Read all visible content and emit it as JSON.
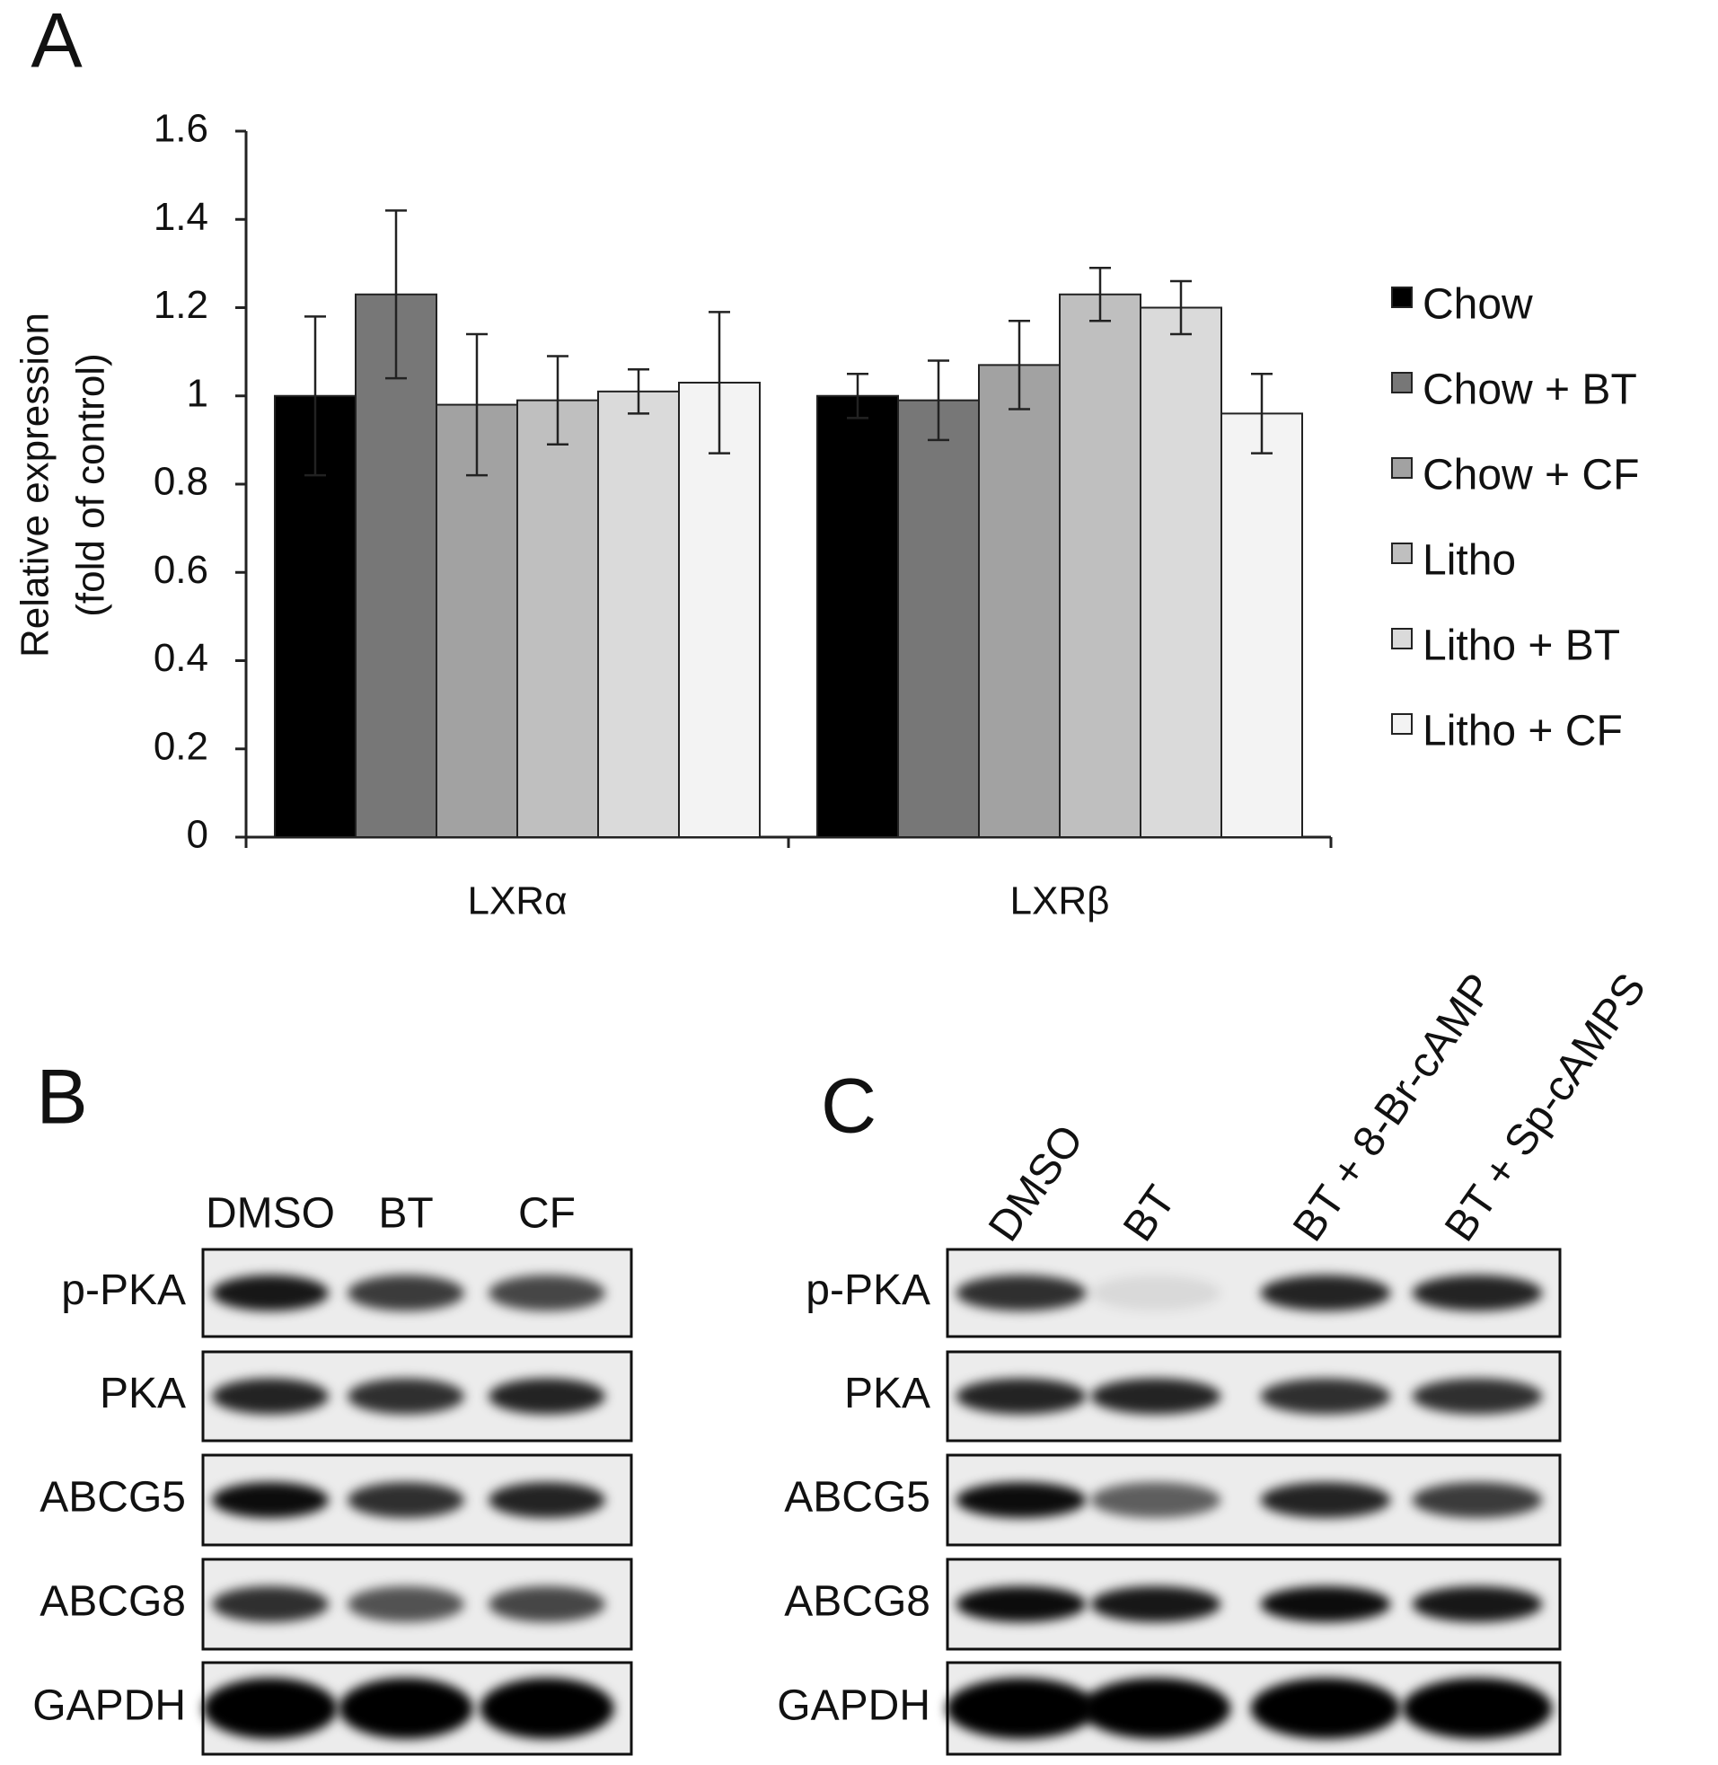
{
  "chart_data": {
    "type": "bar",
    "panel_label": "A",
    "ylabel": [
      "Relative expression",
      "(fold of control)"
    ],
    "categories": [
      "LXRα",
      "LXRβ"
    ],
    "series": [
      {
        "name": "Chow",
        "color": "#000000",
        "values": [
          1.0,
          1.0
        ],
        "errors": [
          0.18,
          0.05
        ]
      },
      {
        "name": "Chow + BT",
        "color": "#777777",
        "values": [
          1.23,
          0.99
        ],
        "errors": [
          0.19,
          0.09
        ]
      },
      {
        "name": "Chow + CF",
        "color": "#a2a2a2",
        "values": [
          0.98,
          1.07
        ],
        "errors": [
          0.16,
          0.1
        ]
      },
      {
        "name": "Litho",
        "color": "#bfbfbf",
        "values": [
          0.99,
          1.23
        ],
        "errors": [
          0.1,
          0.06
        ]
      },
      {
        "name": "Litho + BT",
        "color": "#dadada",
        "values": [
          1.01,
          1.2
        ],
        "errors": [
          0.05,
          0.06
        ]
      },
      {
        "name": "Litho + CF",
        "color": "#f3f3f3",
        "values": [
          1.03,
          0.96
        ],
        "errors": [
          0.16,
          0.09
        ]
      }
    ],
    "ylim": [
      0,
      1.6
    ],
    "yticks": [
      0,
      0.2,
      0.4,
      0.6,
      0.8,
      1,
      1.2,
      1.4,
      1.6
    ],
    "legend": "right"
  },
  "blots": [
    {
      "panel_label": "B",
      "lanes": [
        "DMSO",
        "BT",
        "CF"
      ],
      "rows": [
        "p-PKA",
        "PKA",
        "ABCG5",
        "ABCG8",
        "GAPDH"
      ]
    },
    {
      "panel_label": "C",
      "lanes": [
        "DMSO",
        "BT",
        "BT + 8-Br-cAMP",
        "BT + Sp-cAMPS"
      ],
      "rows": [
        "p-PKA",
        "PKA",
        "ABCG5",
        "ABCG8",
        "GAPDH"
      ]
    }
  ]
}
